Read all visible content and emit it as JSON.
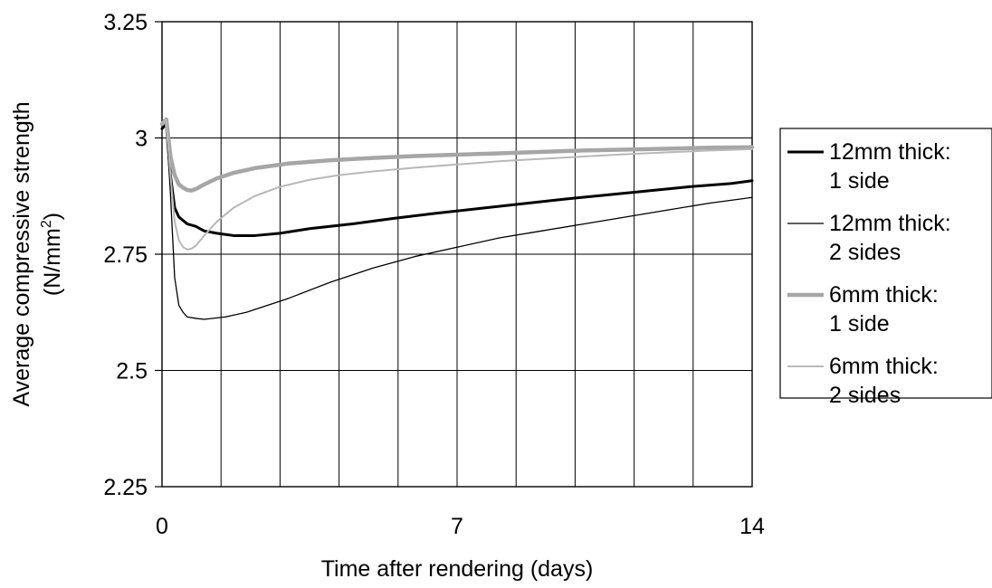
{
  "chart_data": {
    "type": "line",
    "title": "",
    "xlabel": "Time after rendering (days)",
    "ylabel_line1": "Average compressive strength",
    "ylabel_line2_main": "(N/mm",
    "ylabel_line2_sup": "2",
    "ylabel_line2_end": ")",
    "xlim": [
      0,
      14
    ],
    "ylim": [
      2.25,
      3.25
    ],
    "x_ticks": [
      0,
      7,
      14
    ],
    "x_tick_labels": [
      "0",
      "7",
      "14"
    ],
    "y_ticks": [
      2.25,
      2.5,
      2.75,
      3,
      3.25
    ],
    "y_tick_labels": [
      "2.25",
      "2.5",
      "2.75",
      "3",
      "3.25"
    ],
    "vertical_gridlines_days": [
      1.4,
      2.8,
      4.2,
      5.6,
      7,
      8.4,
      9.8,
      11.2,
      12.6
    ],
    "grid": true,
    "legend_position": "right",
    "series": [
      {
        "name_line1": "12mm thick:",
        "name_line2": "1 side",
        "color": "#000000",
        "width": 3,
        "x": [
          0,
          0.1,
          0.2,
          0.3,
          0.4,
          0.6,
          0.8,
          1.0,
          1.3,
          1.7,
          2.2,
          2.8,
          3.5,
          4.5,
          5.5,
          6.5,
          7.5,
          8.5,
          9.5,
          10.5,
          11.5,
          12.5,
          13.5,
          14
        ],
        "y": [
          3.02,
          3.03,
          2.92,
          2.85,
          2.83,
          2.815,
          2.81,
          2.8,
          2.795,
          2.79,
          2.79,
          2.795,
          2.805,
          2.815,
          2.827,
          2.838,
          2.848,
          2.858,
          2.868,
          2.877,
          2.886,
          2.895,
          2.902,
          2.908
        ]
      },
      {
        "name_line1": "12mm thick:",
        "name_line2": "2 sides",
        "color": "#000000",
        "width": 1.3,
        "x": [
          0,
          0.1,
          0.2,
          0.3,
          0.4,
          0.5,
          0.6,
          0.8,
          1.0,
          1.5,
          2.0,
          3.0,
          4.0,
          5.0,
          6.0,
          7.0,
          8.0,
          9.0,
          10.0,
          11.0,
          12.0,
          13.0,
          14.0
        ],
        "y": [
          3.02,
          3.03,
          2.88,
          2.7,
          2.64,
          2.625,
          2.615,
          2.612,
          2.61,
          2.615,
          2.625,
          2.655,
          2.69,
          2.72,
          2.745,
          2.765,
          2.785,
          2.8,
          2.815,
          2.83,
          2.845,
          2.86,
          2.872
        ]
      },
      {
        "name_line1": "6mm thick:",
        "name_line2": "1 side",
        "color": "#a6a6a6",
        "width": 4.5,
        "x": [
          0,
          0.1,
          0.2,
          0.3,
          0.4,
          0.5,
          0.6,
          0.7,
          0.8,
          1.0,
          1.3,
          1.7,
          2.2,
          3.0,
          4.0,
          5.0,
          6.0,
          7.0,
          8.0,
          9.0,
          10.0,
          11.0,
          12.0,
          13.0,
          14.0
        ],
        "y": [
          3.03,
          3.04,
          2.96,
          2.92,
          2.9,
          2.893,
          2.888,
          2.887,
          2.89,
          2.9,
          2.913,
          2.925,
          2.935,
          2.945,
          2.952,
          2.957,
          2.961,
          2.964,
          2.967,
          2.97,
          2.973,
          2.975,
          2.977,
          2.979,
          2.98
        ]
      },
      {
        "name_line1": "6mm thick:",
        "name_line2": "2 sides",
        "color": "#b8b8b8",
        "width": 2,
        "x": [
          0,
          0.1,
          0.2,
          0.3,
          0.4,
          0.5,
          0.6,
          0.7,
          0.8,
          1.0,
          1.3,
          1.7,
          2.2,
          2.8,
          3.5,
          4.2,
          5.0,
          6.0,
          7.0,
          8.0,
          9.0,
          10.0,
          11.0,
          12.0,
          13.0,
          14.0
        ],
        "y": [
          3.03,
          3.04,
          2.92,
          2.82,
          2.78,
          2.765,
          2.76,
          2.762,
          2.768,
          2.79,
          2.82,
          2.85,
          2.875,
          2.895,
          2.91,
          2.92,
          2.928,
          2.936,
          2.943,
          2.95,
          2.955,
          2.96,
          2.965,
          2.969,
          2.973,
          2.976
        ]
      }
    ]
  }
}
